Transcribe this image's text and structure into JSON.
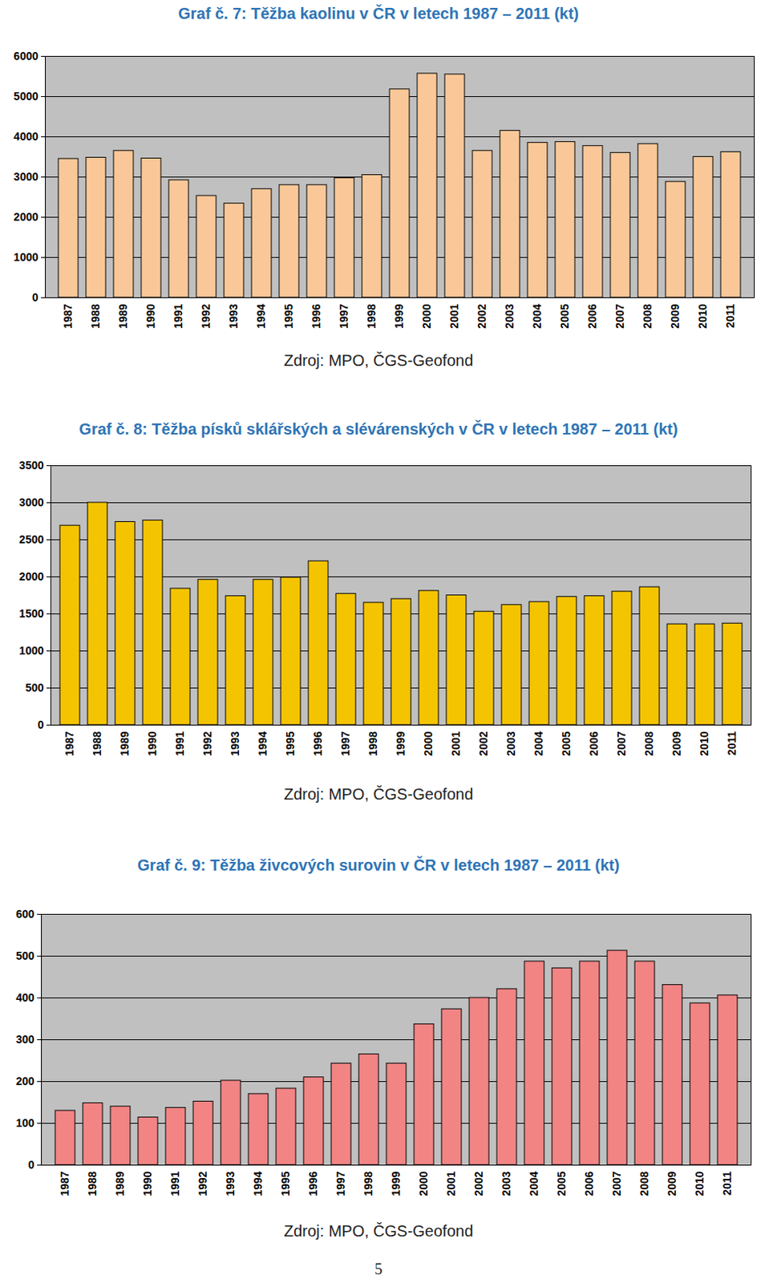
{
  "chart_data": [
    {
      "type": "bar",
      "title": "Graf č. 7: Těžba kaolinu v ČR v letech 1987 – 2011 (kt)",
      "caption": "Zdroj: MPO, ČGS-Geofond",
      "categories": [
        "1987",
        "1988",
        "1989",
        "1990",
        "1991",
        "1992",
        "1993",
        "1994",
        "1995",
        "1996",
        "1997",
        "1998",
        "1999",
        "2000",
        "2001",
        "2002",
        "2003",
        "2004",
        "2005",
        "2006",
        "2007",
        "2008",
        "2009",
        "2010",
        "2011"
      ],
      "values": [
        3450,
        3480,
        3650,
        3460,
        2920,
        2530,
        2340,
        2700,
        2800,
        2800,
        2970,
        3050,
        5180,
        5570,
        5550,
        3650,
        4150,
        3850,
        3870,
        3770,
        3600,
        3820,
        2880,
        3500,
        3620
      ],
      "color": "#FAC898",
      "ylim": [
        0,
        6000
      ],
      "yticks": [
        0,
        1000,
        2000,
        3000,
        4000,
        5000,
        6000
      ],
      "grid": true
    },
    {
      "type": "bar",
      "title": "Graf č. 8: Těžba písků sklářských a slévárenských v ČR v letech 1987 – 2011 (kt)",
      "caption": "Zdroj: MPO, ČGS-Geofond",
      "categories": [
        "1987",
        "1988",
        "1989",
        "1990",
        "1991",
        "1992",
        "1993",
        "1994",
        "1995",
        "1996",
        "1997",
        "1998",
        "1999",
        "2000",
        "2001",
        "2002",
        "2003",
        "2004",
        "2005",
        "2006",
        "2007",
        "2008",
        "2009",
        "2010",
        "2011"
      ],
      "values": [
        2690,
        3000,
        2740,
        2760,
        1840,
        1960,
        1740,
        1960,
        1990,
        2210,
        1770,
        1650,
        1700,
        1810,
        1750,
        1530,
        1620,
        1660,
        1730,
        1740,
        1800,
        1860,
        1360,
        1360,
        1370
      ],
      "color": "#F5C400",
      "ylim": [
        0,
        3500
      ],
      "yticks": [
        0,
        500,
        1000,
        1500,
        2000,
        2500,
        3000,
        3500
      ],
      "grid": true
    },
    {
      "type": "bar",
      "title": "Graf č. 9: Těžba živcových surovin v ČR v letech 1987 – 2011 (kt)",
      "caption": "Zdroj: MPO, ČGS-Geofond",
      "categories": [
        "1987",
        "1988",
        "1989",
        "1990",
        "1991",
        "1992",
        "1993",
        "1994",
        "1995",
        "1996",
        "1997",
        "1998",
        "1999",
        "2000",
        "2001",
        "2002",
        "2003",
        "2004",
        "2005",
        "2006",
        "2007",
        "2008",
        "2009",
        "2010",
        "2011"
      ],
      "values": [
        130,
        148,
        140,
        114,
        137,
        152,
        202,
        170,
        183,
        210,
        243,
        265,
        243,
        337,
        373,
        400,
        421,
        487,
        471,
        487,
        513,
        487,
        431,
        387,
        406
      ],
      "color": "#F28484",
      "ylim": [
        0,
        600
      ],
      "yticks": [
        0,
        100,
        200,
        300,
        400,
        500,
        600
      ],
      "grid": true
    }
  ],
  "page_number": 5
}
